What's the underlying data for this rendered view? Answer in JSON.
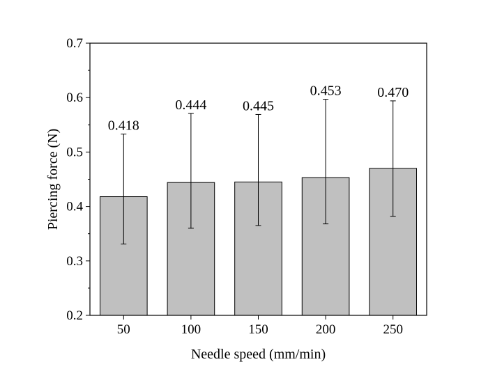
{
  "chart_data": {
    "type": "bar",
    "title": "",
    "xlabel": "Needle speed (mm/min)",
    "ylabel": "Piercing force (N)",
    "categories": [
      "50",
      "100",
      "150",
      "200",
      "250"
    ],
    "values": [
      0.418,
      0.444,
      0.445,
      0.453,
      0.47
    ],
    "value_labels": [
      "0.418",
      "0.444",
      "0.445",
      "0.453",
      "0.470"
    ],
    "error_upper": [
      0.533,
      0.571,
      0.569,
      0.597,
      0.594
    ],
    "error_lower": [
      0.331,
      0.36,
      0.365,
      0.368,
      0.382
    ],
    "ylim": [
      0.2,
      0.7
    ],
    "yticks": [
      0.2,
      0.3,
      0.4,
      0.5,
      0.6,
      0.7
    ],
    "ytick_labels": [
      "0.2",
      "0.3",
      "0.4",
      "0.5",
      "0.6",
      "0.7"
    ],
    "grid": false,
    "bar_color": "#c0c0c0",
    "bar_edge_color": "#000000"
  }
}
